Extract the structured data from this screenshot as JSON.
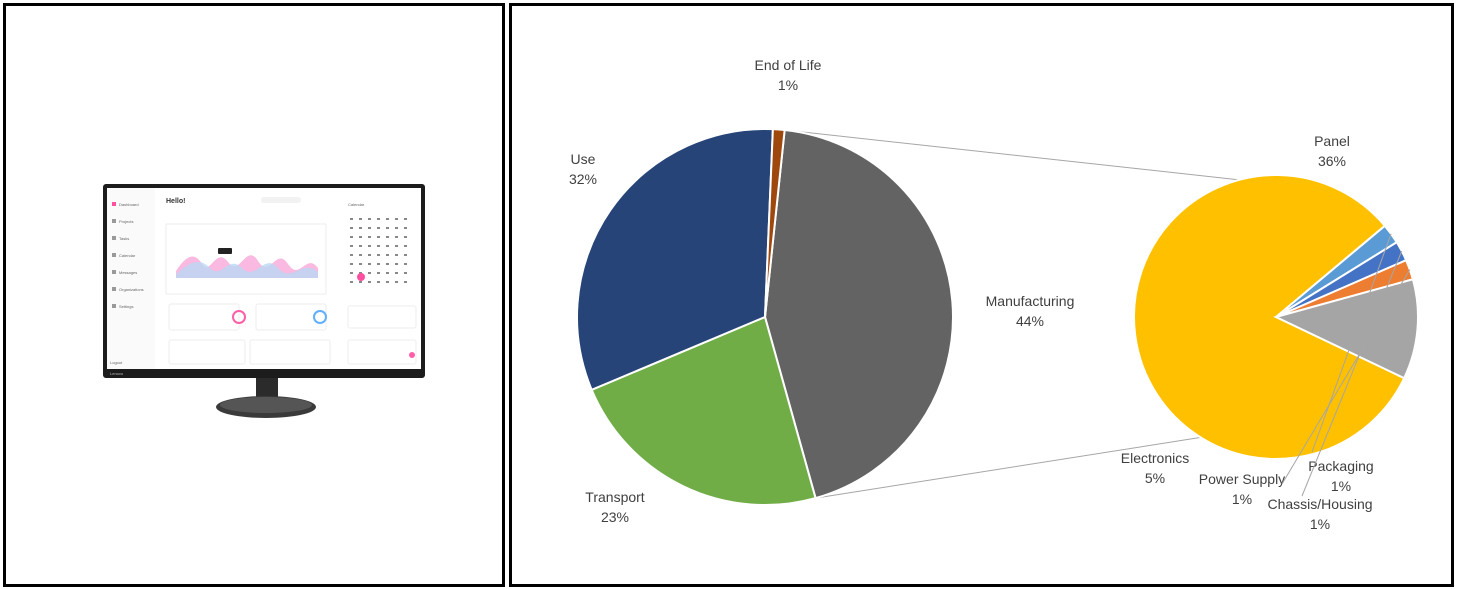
{
  "chart_data": {
    "type": "pie",
    "main": {
      "slices": [
        {
          "label": "Manufacturing",
          "value": 44,
          "value_label": "44%",
          "color": "#636363"
        },
        {
          "label": "Transport",
          "value": 23,
          "value_label": "23%",
          "color": "#70ad47"
        },
        {
          "label": "Use",
          "value": 32,
          "value_label": "32%",
          "color": "#264478"
        },
        {
          "label": "End of Life",
          "value": 1,
          "value_label": "1%",
          "color": "#9e480e"
        }
      ]
    },
    "breakdown_of": "Manufacturing",
    "secondary": {
      "slices": [
        {
          "label": "Panel",
          "value": 36,
          "value_label": "36%",
          "color": "#ffc000"
        },
        {
          "label": "Packaging",
          "value": 1,
          "value_label": "1%",
          "color": "#5b9bd5"
        },
        {
          "label": "Chassis/Housing",
          "value": 1,
          "value_label": "1%",
          "color": "#4472c4"
        },
        {
          "label": "Power Supply",
          "value": 1,
          "value_label": "1%",
          "color": "#ed7d31"
        },
        {
          "label": "Electronics",
          "value": 5,
          "value_label": "5%",
          "color": "#a5a5a5"
        }
      ]
    },
    "legend": "none"
  },
  "monitor": {
    "screen_title": "Hello!",
    "sidebar_items": [
      "Dashboard",
      "Projects",
      "Tasks",
      "Calendar",
      "Messages",
      "Organizations",
      "Settings"
    ],
    "calendar_title": "Calendar",
    "logout": "Logout",
    "brand": "Lenovo"
  }
}
